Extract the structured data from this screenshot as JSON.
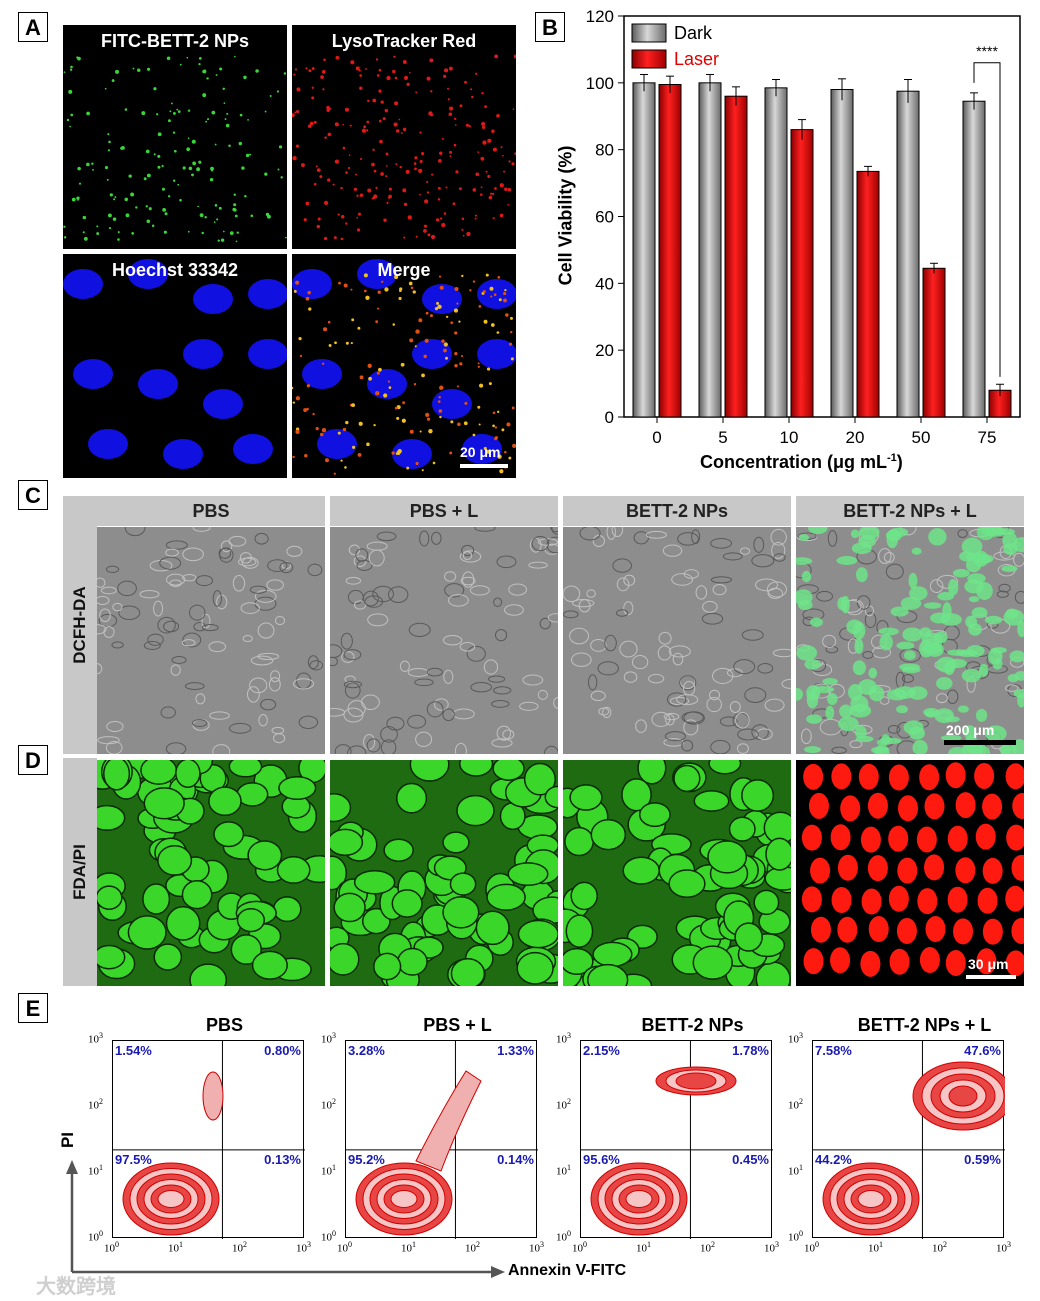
{
  "panel_letters": {
    "a": "A",
    "b": "B",
    "c": "C",
    "d": "D",
    "e": "E"
  },
  "panel_a": {
    "labels": [
      "FITC-BETT-2 NPs",
      "LysoTracker Red",
      "Hoechst 33342",
      "Merge"
    ],
    "scalebar": "20 μm"
  },
  "panel_b": {
    "ylabel": "Cell Viability (%)",
    "xlabel": "Concentration (μg mL",
    "xlabel_sup": "-1",
    "xlabel_end": ")",
    "significance": "****",
    "yticks": [
      "0",
      "20",
      "40",
      "60",
      "80",
      "100",
      "120"
    ],
    "colors": {
      "dark": "#8c8c8c",
      "laser": "#e00000"
    }
  },
  "chart_data": {
    "type": "bar",
    "categories": [
      "0",
      "5",
      "10",
      "20",
      "50",
      "75"
    ],
    "series": [
      {
        "name": "Dark",
        "values": [
          100,
          100,
          98.5,
          98,
          97.5,
          94.5
        ],
        "errors": [
          2.5,
          2.5,
          2.5,
          3.2,
          3.5,
          2.5
        ]
      },
      {
        "name": "Laser",
        "values": [
          99.5,
          96,
          86,
          73.5,
          44.5,
          8
        ],
        "errors": [
          2.5,
          2.8,
          3,
          1.5,
          1.5,
          1.8
        ]
      }
    ],
    "ylim": [
      0,
      120
    ],
    "xlabel": "Concentration (μg mL-1)",
    "ylabel": "Cell Viability (%)",
    "legend": "top-left"
  },
  "panel_c": {
    "columns": [
      "PBS",
      "PBS + L",
      "BETT-2 NPs",
      "BETT-2 NPs + L"
    ],
    "row_label": "DCFH-DA",
    "scalebar": "200 μm"
  },
  "panel_d": {
    "row_label": "FDA/PI",
    "scalebar": "30 μm"
  },
  "panel_e": {
    "titles": [
      "PBS",
      "PBS + L",
      "BETT-2 NPs",
      "BETT-2 NPs + L"
    ],
    "quadrants": [
      {
        "ul": "1.54%",
        "ur": "0.80%",
        "ll": "97.5%",
        "lr": "0.13%"
      },
      {
        "ul": "3.28%",
        "ur": "1.33%",
        "ll": "95.2%",
        "lr": "0.14%"
      },
      {
        "ul": "2.15%",
        "ur": "1.78%",
        "ll": "95.6%",
        "lr": "0.45%"
      },
      {
        "ul": "7.58%",
        "ur": "47.6%",
        "ll": "44.2%",
        "lr": "0.59%"
      }
    ],
    "y_axis_label": "PI",
    "x_axis_label": "Annexin V-FITC",
    "tick_base": "10",
    "tick_exps": [
      "0",
      "1",
      "2",
      "3"
    ]
  },
  "watermark": "大数跨境"
}
